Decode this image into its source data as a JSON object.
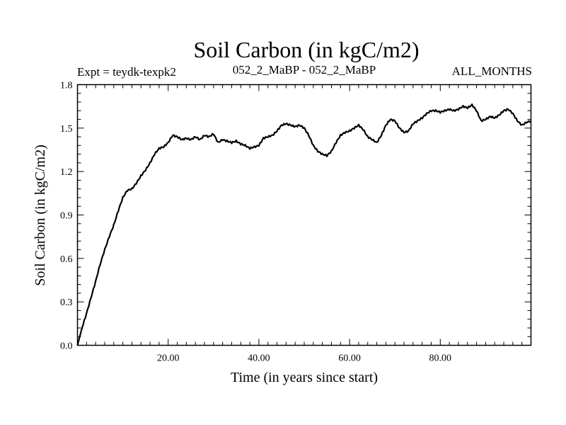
{
  "chart_data": {
    "type": "line",
    "title": "Soil Carbon (in kgC/m2)",
    "subtitle_left": "Expt = teydk-texpk2",
    "subtitle_center": "052_2_MaBP - 052_2_MaBP",
    "subtitle_right": "ALL_MONTHS",
    "xlabel": "Time (in years since start)",
    "ylabel": "Soil Carbon (in kgC/m2)",
    "xlim": [
      0,
      100
    ],
    "ylim": [
      0,
      1.8
    ],
    "xticks": [
      {
        "value": 20,
        "label": "20.00"
      },
      {
        "value": 40,
        "label": "40.00"
      },
      {
        "value": 60,
        "label": "60.00"
      },
      {
        "value": 80,
        "label": "80.00"
      }
    ],
    "yticks": [
      {
        "value": 0.0,
        "label": "0.0"
      },
      {
        "value": 0.3,
        "label": "0.3"
      },
      {
        "value": 0.6,
        "label": "0.6"
      },
      {
        "value": 0.9,
        "label": "0.9"
      },
      {
        "value": 1.2,
        "label": "1.2"
      },
      {
        "value": 1.5,
        "label": "1.5"
      },
      {
        "value": 1.8,
        "label": "1.8"
      }
    ],
    "series": [
      {
        "name": "Soil Carbon",
        "x": [
          0,
          1,
          2,
          3,
          4,
          5,
          6,
          7,
          8,
          9,
          10,
          11,
          12,
          13,
          14,
          15,
          16,
          17,
          18,
          19,
          20,
          21,
          22,
          23,
          24,
          25,
          26,
          27,
          28,
          29,
          30,
          31,
          32,
          33,
          34,
          35,
          36,
          37,
          38,
          39,
          40,
          41,
          42,
          43,
          44,
          45,
          46,
          47,
          48,
          49,
          50,
          51,
          52,
          53,
          54,
          55,
          56,
          57,
          58,
          59,
          60,
          61,
          62,
          63,
          64,
          65,
          66,
          67,
          68,
          69,
          70,
          71,
          72,
          73,
          74,
          75,
          76,
          77,
          78,
          79,
          80,
          81,
          82,
          83,
          84,
          85,
          86,
          87,
          88,
          89,
          90,
          91,
          92,
          93,
          94,
          95,
          96,
          97,
          98,
          99,
          100
        ],
        "values": [
          0.0,
          0.12,
          0.22,
          0.33,
          0.44,
          0.56,
          0.66,
          0.75,
          0.83,
          0.93,
          1.02,
          1.07,
          1.08,
          1.12,
          1.17,
          1.21,
          1.26,
          1.32,
          1.36,
          1.37,
          1.4,
          1.45,
          1.44,
          1.42,
          1.43,
          1.42,
          1.44,
          1.42,
          1.45,
          1.44,
          1.46,
          1.4,
          1.42,
          1.41,
          1.4,
          1.41,
          1.39,
          1.38,
          1.36,
          1.37,
          1.38,
          1.43,
          1.44,
          1.45,
          1.48,
          1.52,
          1.53,
          1.52,
          1.51,
          1.52,
          1.5,
          1.45,
          1.38,
          1.34,
          1.32,
          1.31,
          1.34,
          1.4,
          1.45,
          1.47,
          1.48,
          1.5,
          1.52,
          1.49,
          1.44,
          1.42,
          1.4,
          1.45,
          1.52,
          1.56,
          1.55,
          1.5,
          1.47,
          1.48,
          1.53,
          1.55,
          1.57,
          1.6,
          1.62,
          1.62,
          1.61,
          1.62,
          1.63,
          1.62,
          1.63,
          1.65,
          1.64,
          1.66,
          1.62,
          1.55,
          1.56,
          1.58,
          1.57,
          1.59,
          1.62,
          1.63,
          1.6,
          1.55,
          1.52,
          1.54,
          1.55
        ]
      }
    ],
    "grid": false,
    "line_color": "#000000"
  }
}
